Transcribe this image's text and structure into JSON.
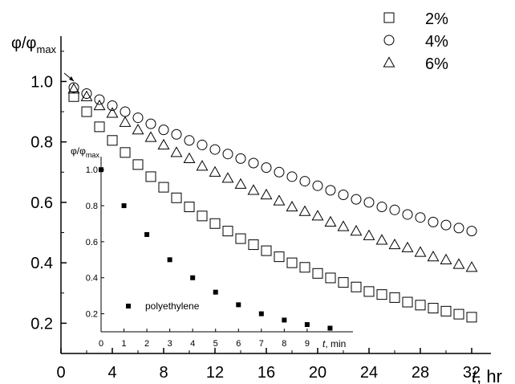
{
  "chart_data": [
    {
      "type": "scatter",
      "title": "",
      "xlabel": "t, hr",
      "ylabel": "φ/φmax",
      "xlim": [
        0,
        33.5
      ],
      "ylim": [
        0.1,
        1.15
      ],
      "xticks": [
        "0",
        "4",
        "8",
        "12",
        "16",
        "20",
        "24",
        "28",
        "32"
      ],
      "yticks": [
        "0.2",
        "0.4",
        "0.6",
        "0.8",
        "1.0"
      ],
      "legend_position": "top-right",
      "series": [
        {
          "name": "2%",
          "marker": "square-open",
          "x": [
            0,
            1,
            2,
            3,
            4,
            5,
            6,
            7,
            8,
            9,
            10,
            11,
            12,
            13,
            14,
            15,
            16,
            17,
            18,
            19,
            20,
            21,
            22,
            23,
            24,
            25,
            26,
            27,
            28,
            29,
            30,
            31,
            32
          ],
          "y": [
            1.0,
            0.95,
            0.9,
            0.85,
            0.805,
            0.765,
            0.725,
            0.685,
            0.65,
            0.615,
            0.585,
            0.555,
            0.53,
            0.505,
            0.48,
            0.46,
            0.44,
            0.42,
            0.4,
            0.385,
            0.365,
            0.35,
            0.335,
            0.32,
            0.305,
            0.295,
            0.285,
            0.27,
            0.26,
            0.25,
            0.24,
            0.23,
            0.22
          ]
        },
        {
          "name": "4%",
          "marker": "circle-open",
          "x": [
            0,
            1,
            2,
            3,
            4,
            5,
            6,
            7,
            8,
            9,
            10,
            11,
            12,
            13,
            14,
            15,
            16,
            17,
            18,
            19,
            20,
            21,
            22,
            23,
            24,
            25,
            26,
            27,
            28,
            29,
            30,
            31,
            32
          ],
          "y": [
            1.0,
            0.98,
            0.96,
            0.94,
            0.92,
            0.9,
            0.88,
            0.86,
            0.84,
            0.825,
            0.805,
            0.79,
            0.775,
            0.76,
            0.745,
            0.73,
            0.715,
            0.7,
            0.685,
            0.67,
            0.655,
            0.64,
            0.625,
            0.61,
            0.6,
            0.585,
            0.575,
            0.56,
            0.55,
            0.535,
            0.525,
            0.515,
            0.505
          ]
        },
        {
          "name": "6%",
          "marker": "triangle-open",
          "x": [
            0,
            1,
            2,
            3,
            4,
            5,
            6,
            7,
            8,
            9,
            10,
            11,
            12,
            13,
            14,
            15,
            16,
            17,
            18,
            19,
            20,
            21,
            22,
            23,
            24,
            25,
            26,
            27,
            28,
            29,
            30,
            31,
            32
          ],
          "y": [
            1.0,
            0.975,
            0.95,
            0.92,
            0.895,
            0.865,
            0.84,
            0.815,
            0.79,
            0.765,
            0.745,
            0.72,
            0.7,
            0.68,
            0.66,
            0.64,
            0.625,
            0.605,
            0.585,
            0.57,
            0.555,
            0.535,
            0.52,
            0.505,
            0.49,
            0.475,
            0.46,
            0.45,
            0.435,
            0.42,
            0.41,
            0.395,
            0.385
          ]
        }
      ]
    },
    {
      "type": "scatter",
      "title": "",
      "xlabel": "t, min",
      "ylabel": "φ/φmax",
      "xlim": [
        0,
        11
      ],
      "ylim": [
        0.1,
        1.05
      ],
      "xticks": [
        "0",
        "1",
        "2",
        "3",
        "4",
        "5",
        "6",
        "7",
        "8",
        "9"
      ],
      "yticks": [
        "0.2",
        "0.4",
        "0.6",
        "0.8",
        "1.0"
      ],
      "legend_position": "bottom-left",
      "series": [
        {
          "name": "polyethylene",
          "marker": "square-filled",
          "x": [
            0,
            1,
            2,
            3,
            4,
            5,
            6,
            7,
            8,
            9,
            10
          ],
          "y": [
            1.0,
            0.8,
            0.64,
            0.5,
            0.4,
            0.32,
            0.25,
            0.2,
            0.165,
            0.14,
            0.12
          ]
        }
      ]
    }
  ],
  "labels": {
    "main_ylabel_base": "φ/φ",
    "main_ylabel_sub": "max",
    "main_xlabel_italic": "t",
    "main_xlabel_rest": ", hr",
    "inset_ylabel_base": "φ/φ",
    "inset_ylabel_sub": "max",
    "inset_xlabel_italic": "t",
    "inset_xlabel_rest": ", min"
  }
}
